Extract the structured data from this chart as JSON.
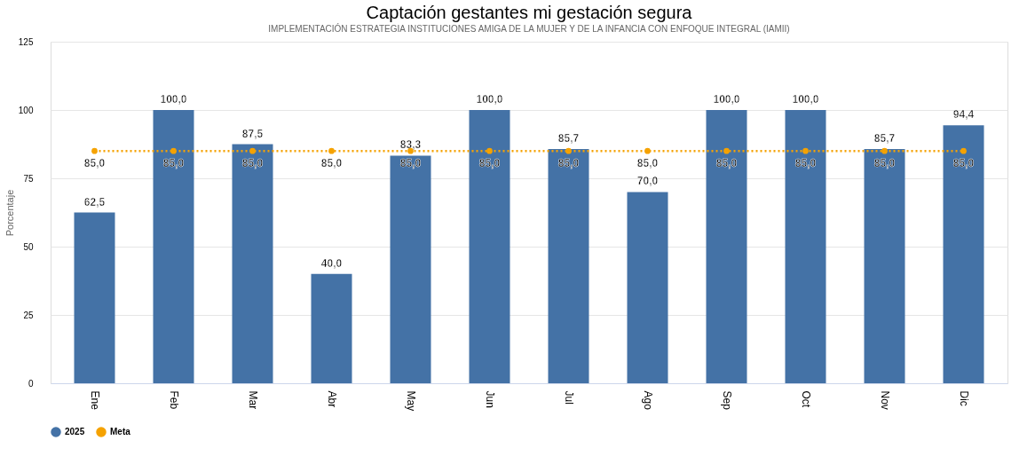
{
  "chart_data": {
    "type": "bar",
    "title": "Captación gestantes mi gestación segura",
    "subtitle": "IMPLEMENTACIÓN ESTRATEGIA INSTITUCIONES AMIGA DE LA MUJER Y DE LA INFANCIA CON ENFOQUE INTEGRAL (IAMII)",
    "ylabel": "Porcentaje",
    "categories": [
      "Ene",
      "Feb",
      "Mar",
      "Abr",
      "May",
      "Jun",
      "Jul",
      "Ago",
      "Sep",
      "Oct",
      "Nov",
      "Dic"
    ],
    "series": [
      {
        "name": "2025",
        "color": "#4472a6",
        "values": [
          62.5,
          100,
          87.5,
          40,
          83.3,
          100,
          85.7,
          70,
          100,
          100,
          85.7,
          94.4
        ],
        "value_labels": [
          "62,5",
          "100,0",
          "87,5",
          "40,0",
          "83,3",
          "100,0",
          "85,7",
          "70,0",
          "100,0",
          "100,0",
          "85,7",
          "94,4"
        ]
      },
      {
        "name": "Meta",
        "type": "line",
        "color": "#f5a200",
        "marker": "circle",
        "line_style": "dotted",
        "values": [
          85,
          85,
          85,
          85,
          85,
          85,
          85,
          85,
          85,
          85,
          85,
          85
        ],
        "value_labels": [
          "85,0",
          "85,0",
          "85,0",
          "85,0",
          "85,0",
          "85,0",
          "85,0",
          "85,0",
          "85,0",
          "85,0",
          "85,0",
          "85,0"
        ]
      }
    ],
    "ylim": [
      0,
      125
    ],
    "yticks": [
      0,
      25,
      50,
      75,
      100,
      125
    ],
    "grid": "y",
    "legend": "bottom"
  }
}
